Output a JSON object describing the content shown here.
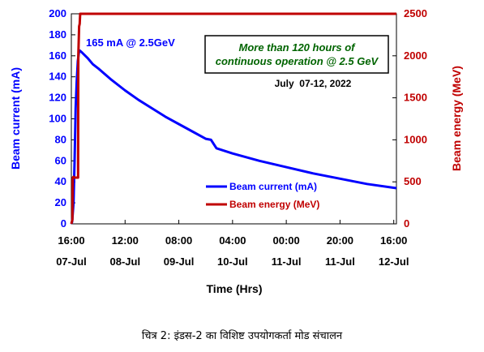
{
  "chart_data": {
    "type": "line",
    "xlabel": "Time (Hrs)",
    "ylabel_left": "Beam current (mA)",
    "ylabel_right": "Beam energy (MeV)",
    "ylim_left": [
      0,
      200
    ],
    "ylim_right": [
      0,
      2500
    ],
    "xlim_hours": [
      0,
      121
    ],
    "left_ticks": [
      "0",
      "20",
      "40",
      "60",
      "80",
      "100",
      "120",
      "140",
      "160",
      "180",
      "200"
    ],
    "right_ticks": [
      "0",
      "500",
      "1000",
      "1500",
      "2000",
      "2500"
    ],
    "x_ticks": [
      {
        "time": "16:00",
        "date": "07-Jul"
      },
      {
        "time": "12:00",
        "date": "08-Jul"
      },
      {
        "time": "08:00",
        "date": "09-Jul"
      },
      {
        "time": "04:00",
        "date": "10-Jul"
      },
      {
        "time": "00:00",
        "date": "11-Jul"
      },
      {
        "time": "20:00",
        "date": "11-Jul"
      },
      {
        "time": "16:00",
        "date": "12-Jul"
      }
    ],
    "series": [
      {
        "name": "Beam current (mA)",
        "color": "#0000ff",
        "axis": "left",
        "x": [
          0,
          0.3,
          0.8,
          1.2,
          1.6,
          2.0,
          2.4,
          2.8,
          3.1,
          4,
          6,
          8,
          10,
          15,
          20,
          25,
          30,
          35,
          40,
          45,
          50,
          52,
          53,
          54,
          60,
          70,
          80,
          90,
          100,
          110,
          121
        ],
        "y": [
          0,
          2,
          20,
          60,
          110,
          135,
          155,
          163,
          165,
          163,
          158,
          152,
          148,
          137,
          127,
          118,
          110,
          102,
          95,
          88,
          81,
          80,
          76,
          72,
          67,
          60,
          54,
          48,
          43,
          38,
          34
        ]
      },
      {
        "name": "Beam energy (MeV)",
        "color": "#c00000",
        "axis": "right",
        "x": [
          0,
          0.4,
          0.5,
          0.8,
          1.0,
          1.3,
          2.5,
          2.6,
          2.9,
          3.1,
          3.3,
          121
        ],
        "y": [
          0,
          50,
          550,
          560,
          550,
          550,
          550,
          2000,
          2350,
          2380,
          2500,
          2500
        ]
      }
    ],
    "annotations": {
      "peak": "165 mA @ 2.5GeV",
      "box_line1": "More than 120 hours of",
      "box_line2": "continuous operation @ 2.5 GeV",
      "date_range": "July  07-12, 2022"
    },
    "legend": [
      "Beam current (mA)",
      "Beam energy (MeV)"
    ],
    "legend_placement": "lower-right inside plot",
    "grid": false
  },
  "caption": "चित्र 2: इंडस-2 का विशिष्ट उपयोगकर्ता मोड संचालन",
  "colors": {
    "current": "#0000ff",
    "energy": "#c00000",
    "box_text": "#006400"
  }
}
